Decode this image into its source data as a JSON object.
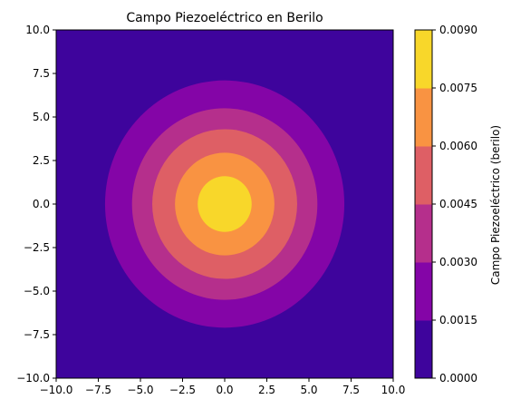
{
  "chart_data": {
    "type": "contour",
    "title": "Campo Piezoeléctrico en Berilo",
    "xlabel": "",
    "ylabel": "",
    "xlim": [
      -10,
      10
    ],
    "ylim": [
      -10,
      10
    ],
    "x_ticks": [
      "−10.0",
      "−7.5",
      "−5.0",
      "−2.5",
      "0.0",
      "2.5",
      "5.0",
      "7.5",
      "10.0"
    ],
    "y_ticks": [
      "10.0",
      "7.5",
      "5.0",
      "2.5",
      "0.0",
      "−2.5",
      "−5.0",
      "−7.5",
      "−10.0"
    ],
    "center": [
      0,
      0
    ],
    "contour_levels": [
      {
        "min": 0.0,
        "max": 0.0015,
        "radius": 10,
        "color": "#3e049c"
      },
      {
        "min": 0.0015,
        "max": 0.003,
        "radius": 7.1,
        "color": "#8405a7"
      },
      {
        "min": 0.003,
        "max": 0.0045,
        "radius": 5.5,
        "color": "#b52f8c"
      },
      {
        "min": 0.0045,
        "max": 0.006,
        "radius": 4.3,
        "color": "#de5f65"
      },
      {
        "min": 0.006,
        "max": 0.0075,
        "radius": 2.95,
        "color": "#f99342"
      },
      {
        "min": 0.0075,
        "max": 0.009,
        "radius": 1.6,
        "color": "#f8d72a"
      }
    ],
    "colorbar": {
      "label": "Campo Piezoeléctrico (berilo)",
      "range": [
        0,
        0.009
      ],
      "ticks": [
        "0.0000",
        "0.0015",
        "0.0030",
        "0.0045",
        "0.0060",
        "0.0075",
        "0.0090"
      ],
      "colors": [
        "#3e049c",
        "#8405a7",
        "#b52f8c",
        "#de5f65",
        "#f99342",
        "#f8d72a"
      ]
    },
    "grid": false,
    "legend": "none"
  }
}
